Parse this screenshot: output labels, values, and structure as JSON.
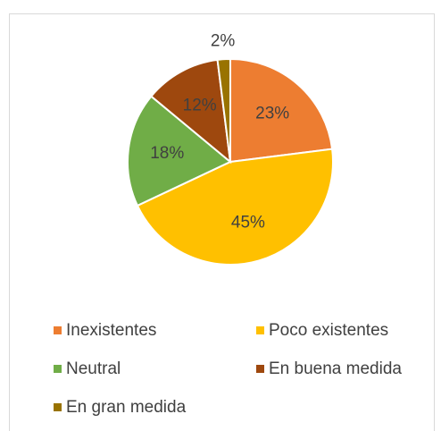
{
  "chart_data": {
    "type": "pie",
    "categories": [
      "Inexistentes",
      "Poco existentes",
      "Neutral",
      "En buena medida",
      "En gran medida"
    ],
    "values": [
      23,
      45,
      18,
      12,
      2
    ],
    "value_labels": [
      "23%",
      "45%",
      "18%",
      "12%",
      "2%"
    ],
    "colors": [
      "#ED7D31",
      "#FFC000",
      "#70AD47",
      "#9E480E",
      "#997300"
    ],
    "legend": "bottom"
  }
}
